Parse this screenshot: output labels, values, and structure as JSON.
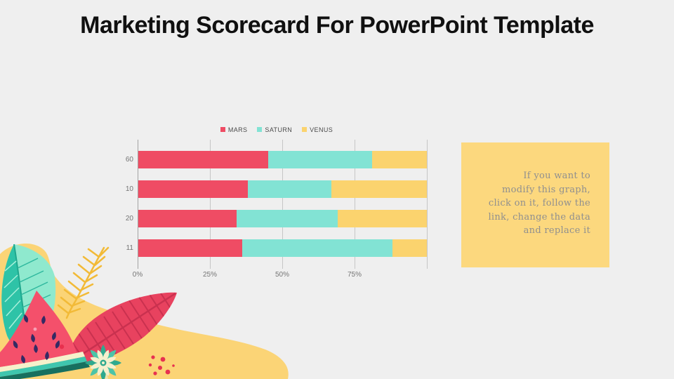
{
  "slide": {
    "title": "Marketing Scorecard For PowerPoint Template",
    "background_color": "#EFEFEF"
  },
  "chart_data": {
    "type": "bar",
    "orientation": "horizontal",
    "stacked": true,
    "title": "",
    "categories": [
      "60",
      "10",
      "20",
      "11"
    ],
    "series": [
      {
        "name": "MARS",
        "color": "#EF4C64",
        "values": [
          45,
          38,
          34,
          36
        ]
      },
      {
        "name": "SATURN",
        "color": "#82E3D4",
        "values": [
          36,
          29,
          35,
          52
        ]
      },
      {
        "name": "VENUS",
        "color": "#FBD36E",
        "values": [
          19,
          33,
          31,
          12
        ]
      }
    ],
    "x_ticks": [
      "0%",
      "25%",
      "50%",
      "75%"
    ],
    "tick_positions": [
      0,
      25,
      50,
      75
    ],
    "grid_positions": [
      0,
      25,
      50,
      75,
      100
    ],
    "xlim": [
      0,
      100
    ],
    "grid": true,
    "legend_position": "top"
  },
  "note_box": {
    "background": "#FCD87E",
    "text_color": "#8F8F8F",
    "lines": [
      "If you want to",
      "modify this graph,",
      "click on it, follow the",
      "link, change the data",
      "and replace it"
    ]
  },
  "decoration": {
    "name": "tropical-watermelon-illustration",
    "colors": {
      "blob_yellow": "#FBD476",
      "fern_yellow": "#F2BA37",
      "leaf_teal_dark": "#2EC3A7",
      "leaf_teal_light": "#8FE9CE",
      "leaf_red": "#E8425F",
      "leaf_red_stripe": "#C9314F",
      "melon_flesh": "#F4506B",
      "melon_seed": "#352A63",
      "rind_cream": "#F6F1CB",
      "rind_teal": "#3FC6AE",
      "rind_dark": "#17705F",
      "flower_petal": "#F5F0CE",
      "flower_leaf": "#2FA98F",
      "dot_red": "#E73150"
    }
  }
}
